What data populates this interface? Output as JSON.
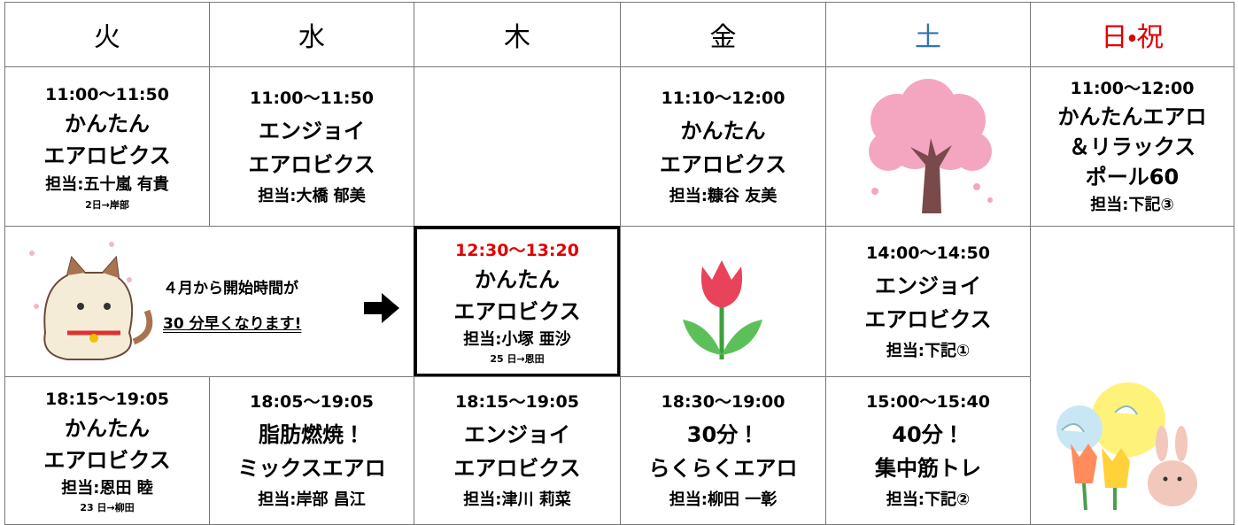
{
  "header": {
    "days": [
      "火",
      "水",
      "木",
      "金",
      "土",
      "日・祝"
    ]
  },
  "rows": [
    [
      [
        "11:00～11:50",
        "かんたん",
        "エアロビクス",
        "担当:五十嵐 有貴",
        "2日→岸部"
      ],
      [
        "11:00～11:50",
        "エンジョイ",
        "エアロビクス",
        "担当:大橋 郁美"
      ],
      [
        "11:10～12:00",
        "かんたん",
        "エアロビクス",
        "担当:糠谷 友美"
      ],
      [
        "11:00～12:00",
        "かんたんエアロ",
        "＆リラックス",
        "ポール60",
        "担当:下記③"
      ]
    ],
    [
      [
        "４月から開始時間が",
        "30 分早くなります!"
      ],
      [
        "12:30～13:20",
        "かんたん",
        "エアロビクス",
        "担当:小塚 亜沙",
        "25 日→恩田"
      ],
      [
        "14:00～14:50",
        "エンジョイ",
        "エアロビクス",
        "担当:下記①"
      ]
    ],
    [
      [
        "18:15～19:05",
        "かんたん",
        "エアロビクス",
        "担当:恩田 睦",
        "23 日→柳田"
      ],
      [
        "18:05～19:05",
        "脂肪燃焼！",
        "ミックスエアロ",
        "担当:岸部 昌江"
      ],
      [
        "18:15～19:05",
        "エンジョイ",
        "エアロビクス",
        "担当:津川 莉菜"
      ],
      [
        "18:30～19:00",
        "30分！",
        "らくらくエアロ",
        "担当:柳田 一彰"
      ],
      [
        "15:00～15:40",
        "40分！",
        "集中筋トレ",
        "担当:下記②"
      ]
    ]
  ]
}
